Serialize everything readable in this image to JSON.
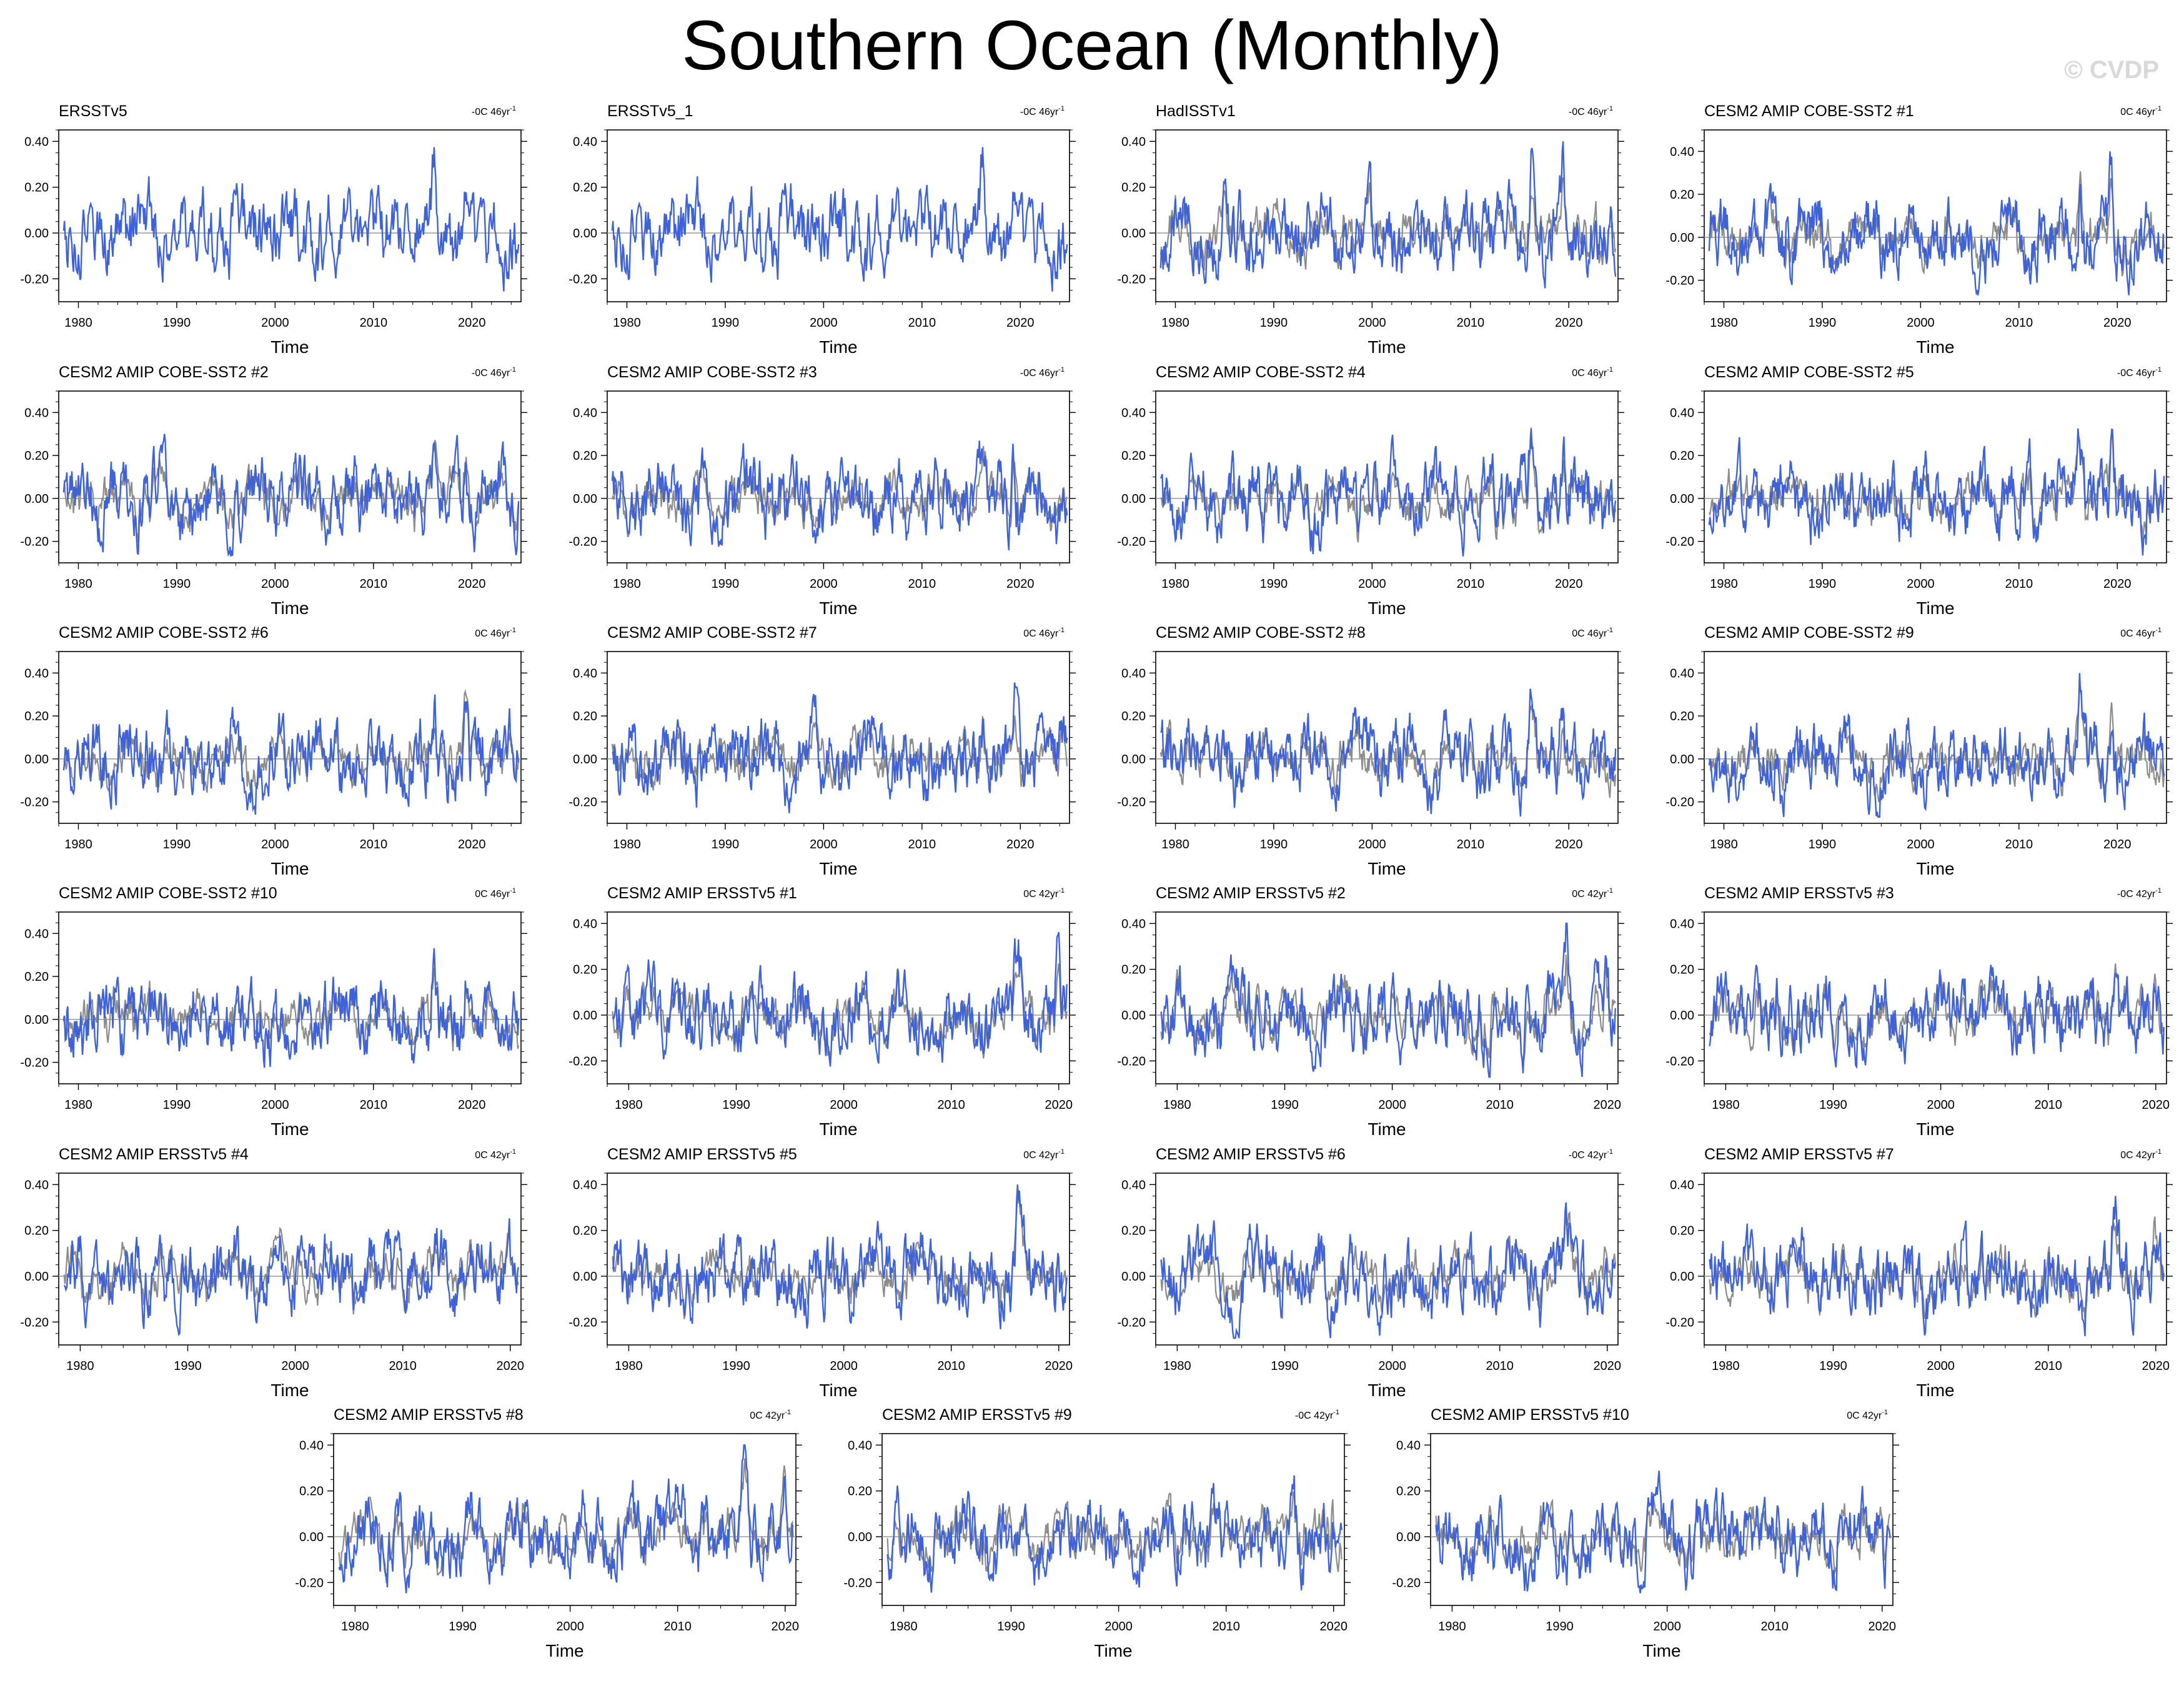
{
  "title": "Southern Ocean (Monthly)",
  "watermark": "© CVDP",
  "colors": {
    "series": "#3f63d6",
    "reference": "#8c8c8c",
    "title_obs": "#000000",
    "title_cobe": "#1f6e8a",
    "title_ersst": "#6e8f6e",
    "zero_line": "#9a9a9a"
  },
  "chart_data": [
    {
      "type": "line",
      "title": "ERSSTv5",
      "title_style": "obs",
      "trend": "-0C 46yr",
      "trend_sup": "-1",
      "xlabel": "Time",
      "ylabel": "",
      "x_range": [
        1978,
        2025
      ],
      "xticks": [
        1980,
        1990,
        2000,
        2010,
        2020
      ],
      "yticks": [
        "0.40",
        "0.20",
        "0.00",
        "-0.20"
      ],
      "ytick_values": [
        0.4,
        0.2,
        0,
        -0.2
      ],
      "ylim": [
        -0.3,
        0.45
      ],
      "reference": false,
      "seed": 1
    },
    {
      "type": "line",
      "title": "ERSSTv5_1",
      "title_style": "obs",
      "trend": "-0C 46yr",
      "trend_sup": "-1",
      "xlabel": "Time",
      "ylabel": "",
      "x_range": [
        1978,
        2025
      ],
      "xticks": [
        1980,
        1990,
        2000,
        2010,
        2020
      ],
      "yticks": [
        "0.40",
        "0.20",
        "0.00",
        "-0.20"
      ],
      "ytick_values": [
        0.4,
        0.2,
        0,
        -0.2
      ],
      "ylim": [
        -0.3,
        0.45
      ],
      "reference": false,
      "seed": 1
    },
    {
      "type": "line",
      "title": "HadISSTv1",
      "title_style": "obs",
      "trend": "-0C 46yr",
      "trend_sup": "-1",
      "xlabel": "Time",
      "ylabel": "",
      "x_range": [
        1978,
        2025
      ],
      "xticks": [
        1980,
        1990,
        2000,
        2010,
        2020
      ],
      "yticks": [
        "0.40",
        "0.20",
        "0.00",
        "-0.20"
      ],
      "ytick_values": [
        0.4,
        0.2,
        0,
        -0.2
      ],
      "ylim": [
        -0.3,
        0.45
      ],
      "reference": true,
      "seed": 3
    },
    {
      "type": "line",
      "title": "CESM2 AMIP COBE-SST2 #1",
      "title_style": "cobe",
      "trend": "0C 46yr",
      "trend_sup": "-1",
      "xlabel": "Time",
      "ylabel": "",
      "x_range": [
        1978,
        2025
      ],
      "xticks": [
        1980,
        1990,
        2000,
        2010,
        2020
      ],
      "yticks": [
        "0.40",
        "0.20",
        "0.00",
        "-0.20"
      ],
      "ytick_values": [
        0.4,
        0.2,
        0,
        -0.2
      ],
      "ylim": [
        -0.3,
        0.5
      ],
      "reference": true,
      "seed": 4
    },
    {
      "type": "line",
      "title": "CESM2 AMIP COBE-SST2 #2",
      "title_style": "cobe",
      "trend": "-0C 46yr",
      "trend_sup": "-1",
      "xlabel": "Time",
      "ylabel": "",
      "x_range": [
        1978,
        2025
      ],
      "xticks": [
        1980,
        1990,
        2000,
        2010,
        2020
      ],
      "yticks": [
        "0.40",
        "0.20",
        "0.00",
        "-0.20"
      ],
      "ytick_values": [
        0.4,
        0.2,
        0,
        -0.2
      ],
      "ylim": [
        -0.3,
        0.5
      ],
      "reference": true,
      "seed": 5
    },
    {
      "type": "line",
      "title": "CESM2 AMIP COBE-SST2 #3",
      "title_style": "cobe",
      "trend": "-0C 46yr",
      "trend_sup": "-1",
      "xlabel": "Time",
      "ylabel": "",
      "x_range": [
        1978,
        2025
      ],
      "xticks": [
        1980,
        1990,
        2000,
        2010,
        2020
      ],
      "yticks": [
        "0.40",
        "0.20",
        "0.00",
        "-0.20"
      ],
      "ytick_values": [
        0.4,
        0.2,
        0,
        -0.2
      ],
      "ylim": [
        -0.3,
        0.5
      ],
      "reference": true,
      "seed": 6
    },
    {
      "type": "line",
      "title": "CESM2 AMIP COBE-SST2 #4",
      "title_style": "cobe",
      "trend": "0C 46yr",
      "trend_sup": "-1",
      "xlabel": "Time",
      "ylabel": "",
      "x_range": [
        1978,
        2025
      ],
      "xticks": [
        1980,
        1990,
        2000,
        2010,
        2020
      ],
      "yticks": [
        "0.40",
        "0.20",
        "0.00",
        "-0.20"
      ],
      "ytick_values": [
        0.4,
        0.2,
        0,
        -0.2
      ],
      "ylim": [
        -0.3,
        0.5
      ],
      "reference": true,
      "seed": 7
    },
    {
      "type": "line",
      "title": "CESM2 AMIP COBE-SST2 #5",
      "title_style": "cobe",
      "trend": "-0C 46yr",
      "trend_sup": "-1",
      "xlabel": "Time",
      "ylabel": "",
      "x_range": [
        1978,
        2025
      ],
      "xticks": [
        1980,
        1990,
        2000,
        2010,
        2020
      ],
      "yticks": [
        "0.40",
        "0.20",
        "0.00",
        "-0.20"
      ],
      "ytick_values": [
        0.4,
        0.2,
        0,
        -0.2
      ],
      "ylim": [
        -0.3,
        0.5
      ],
      "reference": true,
      "seed": 8
    },
    {
      "type": "line",
      "title": "CESM2 AMIP COBE-SST2 #6",
      "title_style": "cobe",
      "trend": "0C 46yr",
      "trend_sup": "-1",
      "xlabel": "Time",
      "ylabel": "",
      "x_range": [
        1978,
        2025
      ],
      "xticks": [
        1980,
        1990,
        2000,
        2010,
        2020
      ],
      "yticks": [
        "0.40",
        "0.20",
        "0.00",
        "-0.20"
      ],
      "ytick_values": [
        0.4,
        0.2,
        0,
        -0.2
      ],
      "ylim": [
        -0.3,
        0.5
      ],
      "reference": true,
      "seed": 9
    },
    {
      "type": "line",
      "title": "CESM2 AMIP COBE-SST2 #7",
      "title_style": "cobe",
      "trend": "0C 46yr",
      "trend_sup": "-1",
      "xlabel": "Time",
      "ylabel": "",
      "x_range": [
        1978,
        2025
      ],
      "xticks": [
        1980,
        1990,
        2000,
        2010,
        2020
      ],
      "yticks": [
        "0.40",
        "0.20",
        "0.00",
        "-0.20"
      ],
      "ytick_values": [
        0.4,
        0.2,
        0,
        -0.2
      ],
      "ylim": [
        -0.3,
        0.5
      ],
      "reference": true,
      "seed": 10
    },
    {
      "type": "line",
      "title": "CESM2 AMIP COBE-SST2 #8",
      "title_style": "cobe",
      "trend": "0C 46yr",
      "trend_sup": "-1",
      "xlabel": "Time",
      "ylabel": "",
      "x_range": [
        1978,
        2025
      ],
      "xticks": [
        1980,
        1990,
        2000,
        2010,
        2020
      ],
      "yticks": [
        "0.40",
        "0.20",
        "0.00",
        "-0.20"
      ],
      "ytick_values": [
        0.4,
        0.2,
        0,
        -0.2
      ],
      "ylim": [
        -0.3,
        0.5
      ],
      "reference": true,
      "seed": 11
    },
    {
      "type": "line",
      "title": "CESM2 AMIP COBE-SST2 #9",
      "title_style": "cobe",
      "trend": "0C 46yr",
      "trend_sup": "-1",
      "xlabel": "Time",
      "ylabel": "",
      "x_range": [
        1978,
        2025
      ],
      "xticks": [
        1980,
        1990,
        2000,
        2010,
        2020
      ],
      "yticks": [
        "0.40",
        "0.20",
        "0.00",
        "-0.20"
      ],
      "ytick_values": [
        0.4,
        0.2,
        0,
        -0.2
      ],
      "ylim": [
        -0.3,
        0.5
      ],
      "reference": true,
      "seed": 12
    },
    {
      "type": "line",
      "title": "CESM2 AMIP COBE-SST2 #10",
      "title_style": "cobe",
      "trend": "0C 46yr",
      "trend_sup": "-1",
      "xlabel": "Time",
      "ylabel": "",
      "x_range": [
        1978,
        2025
      ],
      "xticks": [
        1980,
        1990,
        2000,
        2010,
        2020
      ],
      "yticks": [
        "0.40",
        "0.20",
        "0.00",
        "-0.20"
      ],
      "ytick_values": [
        0.4,
        0.2,
        0,
        -0.2
      ],
      "ylim": [
        -0.3,
        0.5
      ],
      "reference": true,
      "seed": 13
    },
    {
      "type": "line",
      "title": "CESM2 AMIP ERSSTv5 #1",
      "title_style": "ersst",
      "trend": "0C 42yr",
      "trend_sup": "-1",
      "xlabel": "Time",
      "ylabel": "",
      "x_range": [
        1978,
        2021
      ],
      "xticks": [
        1980,
        1990,
        2000,
        2010,
        2020
      ],
      "yticks": [
        "0.40",
        "0.20",
        "0.00",
        "-0.20"
      ],
      "ytick_values": [
        0.4,
        0.2,
        0,
        -0.2
      ],
      "ylim": [
        -0.3,
        0.45
      ],
      "reference": true,
      "seed": 14
    },
    {
      "type": "line",
      "title": "CESM2 AMIP ERSSTv5 #2",
      "title_style": "ersst",
      "trend": "0C 42yr",
      "trend_sup": "-1",
      "xlabel": "Time",
      "ylabel": "",
      "x_range": [
        1978,
        2021
      ],
      "xticks": [
        1980,
        1990,
        2000,
        2010,
        2020
      ],
      "yticks": [
        "0.40",
        "0.20",
        "0.00",
        "-0.20"
      ],
      "ytick_values": [
        0.4,
        0.2,
        0,
        -0.2
      ],
      "ylim": [
        -0.3,
        0.45
      ],
      "reference": true,
      "seed": 15
    },
    {
      "type": "line",
      "title": "CESM2 AMIP ERSSTv5 #3",
      "title_style": "ersst",
      "trend": "-0C 42yr",
      "trend_sup": "-1",
      "xlabel": "Time",
      "ylabel": "",
      "x_range": [
        1978,
        2021
      ],
      "xticks": [
        1980,
        1990,
        2000,
        2010,
        2020
      ],
      "yticks": [
        "0.40",
        "0.20",
        "0.00",
        "-0.20"
      ],
      "ytick_values": [
        0.4,
        0.2,
        0,
        -0.2
      ],
      "ylim": [
        -0.3,
        0.45
      ],
      "reference": true,
      "seed": 16
    },
    {
      "type": "line",
      "title": "CESM2 AMIP ERSSTv5 #4",
      "title_style": "ersst",
      "trend": "0C 42yr",
      "trend_sup": "-1",
      "xlabel": "Time",
      "ylabel": "",
      "x_range": [
        1978,
        2021
      ],
      "xticks": [
        1980,
        1990,
        2000,
        2010,
        2020
      ],
      "yticks": [
        "0.40",
        "0.20",
        "0.00",
        "-0.20"
      ],
      "ytick_values": [
        0.4,
        0.2,
        0,
        -0.2
      ],
      "ylim": [
        -0.3,
        0.45
      ],
      "reference": true,
      "seed": 17
    },
    {
      "type": "line",
      "title": "CESM2 AMIP ERSSTv5 #5",
      "title_style": "ersst",
      "trend": "0C 42yr",
      "trend_sup": "-1",
      "xlabel": "Time",
      "ylabel": "",
      "x_range": [
        1978,
        2021
      ],
      "xticks": [
        1980,
        1990,
        2000,
        2010,
        2020
      ],
      "yticks": [
        "0.40",
        "0.20",
        "0.00",
        "-0.20"
      ],
      "ytick_values": [
        0.4,
        0.2,
        0,
        -0.2
      ],
      "ylim": [
        -0.3,
        0.45
      ],
      "reference": true,
      "seed": 18
    },
    {
      "type": "line",
      "title": "CESM2 AMIP ERSSTv5 #6",
      "title_style": "ersst",
      "trend": "-0C 42yr",
      "trend_sup": "-1",
      "xlabel": "Time",
      "ylabel": "",
      "x_range": [
        1978,
        2021
      ],
      "xticks": [
        1980,
        1990,
        2000,
        2010,
        2020
      ],
      "yticks": [
        "0.40",
        "0.20",
        "0.00",
        "-0.20"
      ],
      "ytick_values": [
        0.4,
        0.2,
        0,
        -0.2
      ],
      "ylim": [
        -0.3,
        0.45
      ],
      "reference": true,
      "seed": 19
    },
    {
      "type": "line",
      "title": "CESM2 AMIP ERSSTv5 #7",
      "title_style": "ersst",
      "trend": "0C 42yr",
      "trend_sup": "-1",
      "xlabel": "Time",
      "ylabel": "",
      "x_range": [
        1978,
        2021
      ],
      "xticks": [
        1980,
        1990,
        2000,
        2010,
        2020
      ],
      "yticks": [
        "0.40",
        "0.20",
        "0.00",
        "-0.20"
      ],
      "ytick_values": [
        0.4,
        0.2,
        0,
        -0.2
      ],
      "ylim": [
        -0.3,
        0.45
      ],
      "reference": true,
      "seed": 20
    },
    {
      "type": "line",
      "title": "CESM2 AMIP ERSSTv5 #8",
      "title_style": "ersst",
      "trend": "0C 42yr",
      "trend_sup": "-1",
      "xlabel": "Time",
      "ylabel": "",
      "x_range": [
        1978,
        2021
      ],
      "xticks": [
        1980,
        1990,
        2000,
        2010,
        2020
      ],
      "yticks": [
        "0.40",
        "0.20",
        "0.00",
        "-0.20"
      ],
      "ytick_values": [
        0.4,
        0.2,
        0,
        -0.2
      ],
      "ylim": [
        -0.3,
        0.45
      ],
      "reference": true,
      "seed": 21
    },
    {
      "type": "line",
      "title": "CESM2 AMIP ERSSTv5 #9",
      "title_style": "ersst",
      "trend": "-0C 42yr",
      "trend_sup": "-1",
      "xlabel": "Time",
      "ylabel": "",
      "x_range": [
        1978,
        2021
      ],
      "xticks": [
        1980,
        1990,
        2000,
        2010,
        2020
      ],
      "yticks": [
        "0.40",
        "0.20",
        "0.00",
        "-0.20"
      ],
      "ytick_values": [
        0.4,
        0.2,
        0,
        -0.2
      ],
      "ylim": [
        -0.3,
        0.45
      ],
      "reference": true,
      "seed": 22
    },
    {
      "type": "line",
      "title": "CESM2 AMIP ERSSTv5 #10",
      "title_style": "ersst",
      "trend": "0C 42yr",
      "trend_sup": "-1",
      "xlabel": "Time",
      "ylabel": "",
      "x_range": [
        1978,
        2021
      ],
      "xticks": [
        1980,
        1990,
        2000,
        2010,
        2020
      ],
      "yticks": [
        "0.40",
        "0.20",
        "0.00",
        "-0.20"
      ],
      "ytick_values": [
        0.4,
        0.2,
        0,
        -0.2
      ],
      "ylim": [
        -0.3,
        0.45
      ],
      "reference": true,
      "seed": 23
    }
  ]
}
